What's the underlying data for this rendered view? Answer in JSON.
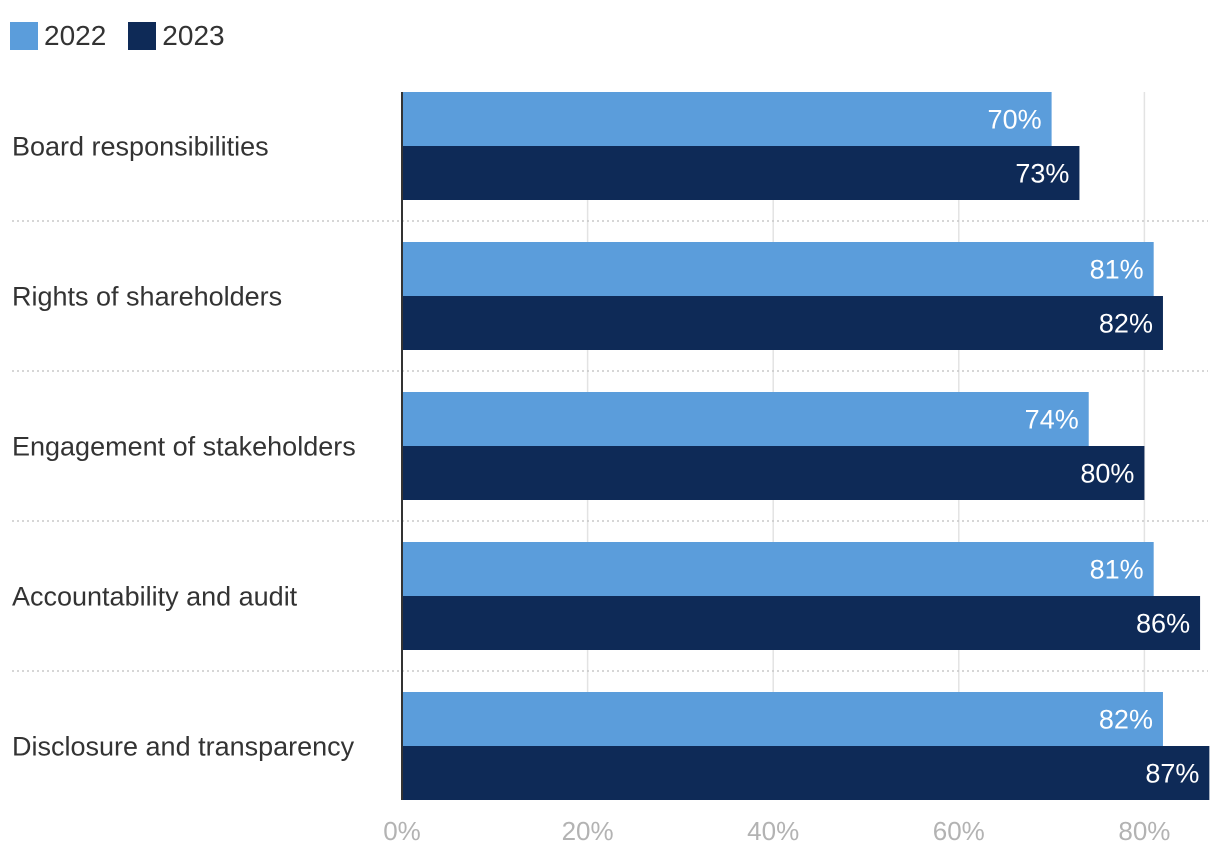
{
  "chart_data": {
    "type": "bar",
    "orientation": "horizontal",
    "title": "",
    "xlabel": "",
    "ylabel": "",
    "categories": [
      "Board responsibilities",
      "Rights of shareholders",
      "Engagement of stakeholders",
      "Accountability and audit",
      "Disclosure and transparency"
    ],
    "series": [
      {
        "name": "2022",
        "color": "#5b9ddb",
        "values": [
          70,
          81,
          74,
          81,
          82
        ],
        "labels": [
          "70%",
          "81%",
          "74%",
          "81%",
          "82%"
        ]
      },
      {
        "name": "2023",
        "color": "#0e2a57",
        "values": [
          73,
          82,
          80,
          86,
          87
        ],
        "labels": [
          "73%",
          "82%",
          "80%",
          "86%",
          "87%"
        ]
      }
    ],
    "xlim": [
      0,
      87
    ],
    "xticks": [
      0,
      20,
      40,
      60,
      80
    ],
    "xtick_labels": [
      "0%",
      "20%",
      "40%",
      "60%",
      "80%"
    ],
    "grid": true,
    "legend_position": "top-left"
  }
}
